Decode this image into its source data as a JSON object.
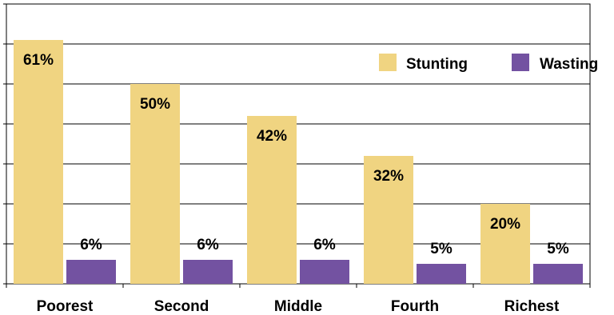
{
  "chart_data": {
    "type": "bar",
    "categories": [
      "Poorest",
      "Second",
      "Middle",
      "Fourth",
      "Richest"
    ],
    "series": [
      {
        "name": "Stunting",
        "values": [
          61,
          50,
          42,
          32,
          20
        ],
        "labels": [
          "61%",
          "50%",
          "42%",
          "32%",
          "20%"
        ],
        "color": "#F0D481"
      },
      {
        "name": "Wasting",
        "values": [
          6,
          6,
          6,
          5,
          5
        ],
        "labels": [
          "6%",
          "6%",
          "6%",
          "5%",
          "5%"
        ],
        "color": "#7352A1"
      }
    ],
    "ylim": [
      0,
      70
    ],
    "grid": true,
    "legend_position": "top-right",
    "xlabel": "",
    "ylabel": "",
    "title": ""
  }
}
